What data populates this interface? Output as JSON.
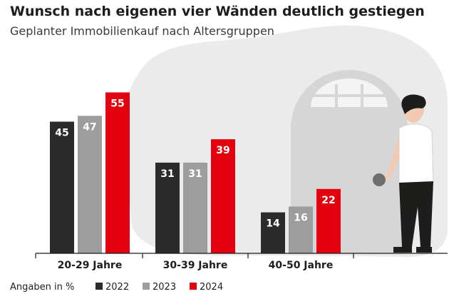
{
  "chart_data": {
    "type": "bar",
    "title": "Wunsch nach eigenen vier Wänden deutlich gestiegen",
    "subtitle": "Geplanter Immobilienkauf nach Altersgruppen",
    "categories": [
      "20-29 Jahre",
      "30-39 Jahre",
      "40-50 Jahre"
    ],
    "series": [
      {
        "name": "2022",
        "values": [
          45,
          31,
          14
        ],
        "color": "#2b2b2b"
      },
      {
        "name": "2023",
        "values": [
          47,
          31,
          16
        ],
        "color": "#9d9d9d"
      },
      {
        "name": "2024",
        "values": [
          55,
          39,
          22
        ],
        "color": "#e3000f"
      }
    ],
    "ylim": [
      0,
      60
    ],
    "grid": false,
    "legend": {
      "title": "Angaben in %",
      "placement": "bottom-left"
    }
  }
}
